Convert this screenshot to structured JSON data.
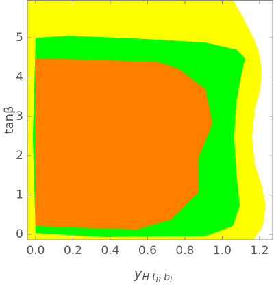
{
  "chart_data": {
    "type": "region",
    "xlabel_parts": [
      "y",
      "H",
      "t",
      "R",
      "b",
      "L"
    ],
    "ylabel": "tanβ",
    "xlim": [
      -0.044,
      1.27
    ],
    "ylim": [
      -0.14,
      5.96
    ],
    "xticks": [
      {
        "value": 0,
        "label": "0.0"
      },
      0.2,
      0.4,
      0.6,
      0.8,
      {
        "value": 1,
        "label": "1.0"
      },
      1.2
    ],
    "yticks": [
      0,
      1,
      2,
      3,
      4,
      5
    ],
    "series": [
      {
        "color": "#ffff00",
        "x": [
          -0.044,
          1.057,
          1.101,
          1.138,
          1.167,
          1.196,
          1.211,
          1.204,
          1.174,
          1.16,
          1.174,
          1.211,
          1.233,
          1.218,
          1.167,
          -0.044
        ],
        "values": [
          5.96,
          5.96,
          5.61,
          5.26,
          5.0,
          4.65,
          4.22,
          3.69,
          3.17,
          2.47,
          1.78,
          1.25,
          0.73,
          0.21,
          -0.14,
          -0.14
        ]
      },
      {
        "color": "#00ff00",
        "x": [
          0,
          0.176,
          0.543,
          0.91,
          1.075,
          1.123,
          1.101,
          1.075,
          1.064,
          1.075,
          1.094,
          1.057,
          0.91,
          0.36,
          0,
          -0.015
        ],
        "values": [
          5.0,
          5.05,
          4.98,
          4.88,
          4.7,
          4.48,
          4.04,
          3.34,
          2.47,
          1.6,
          0.73,
          0.21,
          -0.05,
          -0.07,
          0.03,
          2.47
        ]
      },
      {
        "color": "#ff8000",
        "x": [
          0,
          0.36,
          0.653,
          0.763,
          0.91,
          0.947,
          0.873,
          0.873,
          0.727,
          0.543,
          0
        ],
        "values": [
          4.48,
          4.43,
          4.39,
          4.22,
          3.69,
          2.82,
          1.95,
          1.08,
          0.38,
          0.12,
          0.21
        ]
      }
    ]
  }
}
